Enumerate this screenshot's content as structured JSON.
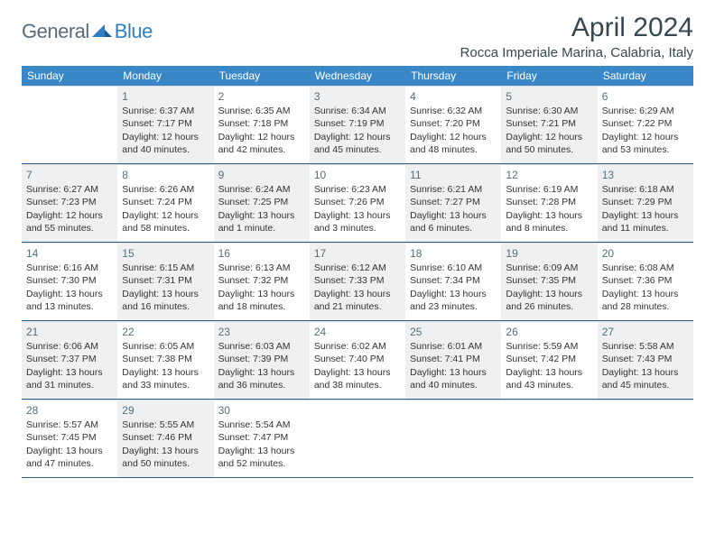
{
  "logo": {
    "general": "General",
    "blue": "Blue"
  },
  "title": "April 2024",
  "location": "Rocca Imperiale Marina, Calabria, Italy",
  "colors": {
    "header_bg": "#3a87c8",
    "header_text": "#ffffff",
    "shaded_bg": "#f0f0f0",
    "row_border": "#2d5f8a",
    "title_color": "#37474f",
    "logo_gray": "#5a6b7a",
    "logo_blue": "#2d7fc4"
  },
  "days_of_week": [
    "Sunday",
    "Monday",
    "Tuesday",
    "Wednesday",
    "Thursday",
    "Friday",
    "Saturday"
  ],
  "weeks": [
    [
      {
        "num": "",
        "shaded": false
      },
      {
        "num": "1",
        "shaded": true,
        "sunrise": "Sunrise: 6:37 AM",
        "sunset": "Sunset: 7:17 PM",
        "daylight1": "Daylight: 12 hours",
        "daylight2": "and 40 minutes."
      },
      {
        "num": "2",
        "shaded": false,
        "sunrise": "Sunrise: 6:35 AM",
        "sunset": "Sunset: 7:18 PM",
        "daylight1": "Daylight: 12 hours",
        "daylight2": "and 42 minutes."
      },
      {
        "num": "3",
        "shaded": true,
        "sunrise": "Sunrise: 6:34 AM",
        "sunset": "Sunset: 7:19 PM",
        "daylight1": "Daylight: 12 hours",
        "daylight2": "and 45 minutes."
      },
      {
        "num": "4",
        "shaded": false,
        "sunrise": "Sunrise: 6:32 AM",
        "sunset": "Sunset: 7:20 PM",
        "daylight1": "Daylight: 12 hours",
        "daylight2": "and 48 minutes."
      },
      {
        "num": "5",
        "shaded": true,
        "sunrise": "Sunrise: 6:30 AM",
        "sunset": "Sunset: 7:21 PM",
        "daylight1": "Daylight: 12 hours",
        "daylight2": "and 50 minutes."
      },
      {
        "num": "6",
        "shaded": false,
        "sunrise": "Sunrise: 6:29 AM",
        "sunset": "Sunset: 7:22 PM",
        "daylight1": "Daylight: 12 hours",
        "daylight2": "and 53 minutes."
      }
    ],
    [
      {
        "num": "7",
        "shaded": true,
        "sunrise": "Sunrise: 6:27 AM",
        "sunset": "Sunset: 7:23 PM",
        "daylight1": "Daylight: 12 hours",
        "daylight2": "and 55 minutes."
      },
      {
        "num": "8",
        "shaded": false,
        "sunrise": "Sunrise: 6:26 AM",
        "sunset": "Sunset: 7:24 PM",
        "daylight1": "Daylight: 12 hours",
        "daylight2": "and 58 minutes."
      },
      {
        "num": "9",
        "shaded": true,
        "sunrise": "Sunrise: 6:24 AM",
        "sunset": "Sunset: 7:25 PM",
        "daylight1": "Daylight: 13 hours",
        "daylight2": "and 1 minute."
      },
      {
        "num": "10",
        "shaded": false,
        "sunrise": "Sunrise: 6:23 AM",
        "sunset": "Sunset: 7:26 PM",
        "daylight1": "Daylight: 13 hours",
        "daylight2": "and 3 minutes."
      },
      {
        "num": "11",
        "shaded": true,
        "sunrise": "Sunrise: 6:21 AM",
        "sunset": "Sunset: 7:27 PM",
        "daylight1": "Daylight: 13 hours",
        "daylight2": "and 6 minutes."
      },
      {
        "num": "12",
        "shaded": false,
        "sunrise": "Sunrise: 6:19 AM",
        "sunset": "Sunset: 7:28 PM",
        "daylight1": "Daylight: 13 hours",
        "daylight2": "and 8 minutes."
      },
      {
        "num": "13",
        "shaded": true,
        "sunrise": "Sunrise: 6:18 AM",
        "sunset": "Sunset: 7:29 PM",
        "daylight1": "Daylight: 13 hours",
        "daylight2": "and 11 minutes."
      }
    ],
    [
      {
        "num": "14",
        "shaded": false,
        "sunrise": "Sunrise: 6:16 AM",
        "sunset": "Sunset: 7:30 PM",
        "daylight1": "Daylight: 13 hours",
        "daylight2": "and 13 minutes."
      },
      {
        "num": "15",
        "shaded": true,
        "sunrise": "Sunrise: 6:15 AM",
        "sunset": "Sunset: 7:31 PM",
        "daylight1": "Daylight: 13 hours",
        "daylight2": "and 16 minutes."
      },
      {
        "num": "16",
        "shaded": false,
        "sunrise": "Sunrise: 6:13 AM",
        "sunset": "Sunset: 7:32 PM",
        "daylight1": "Daylight: 13 hours",
        "daylight2": "and 18 minutes."
      },
      {
        "num": "17",
        "shaded": true,
        "sunrise": "Sunrise: 6:12 AM",
        "sunset": "Sunset: 7:33 PM",
        "daylight1": "Daylight: 13 hours",
        "daylight2": "and 21 minutes."
      },
      {
        "num": "18",
        "shaded": false,
        "sunrise": "Sunrise: 6:10 AM",
        "sunset": "Sunset: 7:34 PM",
        "daylight1": "Daylight: 13 hours",
        "daylight2": "and 23 minutes."
      },
      {
        "num": "19",
        "shaded": true,
        "sunrise": "Sunrise: 6:09 AM",
        "sunset": "Sunset: 7:35 PM",
        "daylight1": "Daylight: 13 hours",
        "daylight2": "and 26 minutes."
      },
      {
        "num": "20",
        "shaded": false,
        "sunrise": "Sunrise: 6:08 AM",
        "sunset": "Sunset: 7:36 PM",
        "daylight1": "Daylight: 13 hours",
        "daylight2": "and 28 minutes."
      }
    ],
    [
      {
        "num": "21",
        "shaded": true,
        "sunrise": "Sunrise: 6:06 AM",
        "sunset": "Sunset: 7:37 PM",
        "daylight1": "Daylight: 13 hours",
        "daylight2": "and 31 minutes."
      },
      {
        "num": "22",
        "shaded": false,
        "sunrise": "Sunrise: 6:05 AM",
        "sunset": "Sunset: 7:38 PM",
        "daylight1": "Daylight: 13 hours",
        "daylight2": "and 33 minutes."
      },
      {
        "num": "23",
        "shaded": true,
        "sunrise": "Sunrise: 6:03 AM",
        "sunset": "Sunset: 7:39 PM",
        "daylight1": "Daylight: 13 hours",
        "daylight2": "and 36 minutes."
      },
      {
        "num": "24",
        "shaded": false,
        "sunrise": "Sunrise: 6:02 AM",
        "sunset": "Sunset: 7:40 PM",
        "daylight1": "Daylight: 13 hours",
        "daylight2": "and 38 minutes."
      },
      {
        "num": "25",
        "shaded": true,
        "sunrise": "Sunrise: 6:01 AM",
        "sunset": "Sunset: 7:41 PM",
        "daylight1": "Daylight: 13 hours",
        "daylight2": "and 40 minutes."
      },
      {
        "num": "26",
        "shaded": false,
        "sunrise": "Sunrise: 5:59 AM",
        "sunset": "Sunset: 7:42 PM",
        "daylight1": "Daylight: 13 hours",
        "daylight2": "and 43 minutes."
      },
      {
        "num": "27",
        "shaded": true,
        "sunrise": "Sunrise: 5:58 AM",
        "sunset": "Sunset: 7:43 PM",
        "daylight1": "Daylight: 13 hours",
        "daylight2": "and 45 minutes."
      }
    ],
    [
      {
        "num": "28",
        "shaded": false,
        "sunrise": "Sunrise: 5:57 AM",
        "sunset": "Sunset: 7:45 PM",
        "daylight1": "Daylight: 13 hours",
        "daylight2": "and 47 minutes."
      },
      {
        "num": "29",
        "shaded": true,
        "sunrise": "Sunrise: 5:55 AM",
        "sunset": "Sunset: 7:46 PM",
        "daylight1": "Daylight: 13 hours",
        "daylight2": "and 50 minutes."
      },
      {
        "num": "30",
        "shaded": false,
        "sunrise": "Sunrise: 5:54 AM",
        "sunset": "Sunset: 7:47 PM",
        "daylight1": "Daylight: 13 hours",
        "daylight2": "and 52 minutes."
      },
      {
        "num": "",
        "shaded": false
      },
      {
        "num": "",
        "shaded": false
      },
      {
        "num": "",
        "shaded": false
      },
      {
        "num": "",
        "shaded": false
      }
    ]
  ]
}
